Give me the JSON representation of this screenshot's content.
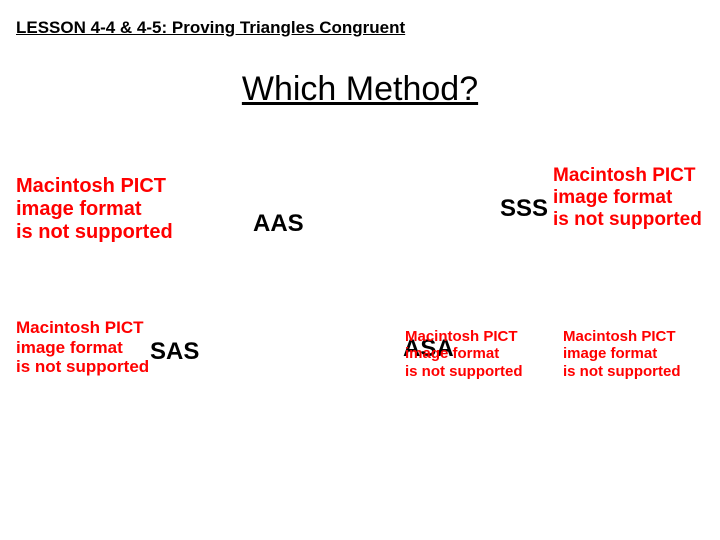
{
  "header": {
    "lesson_title": "LESSON 4-4 & 4-5: Proving Triangles Congruent"
  },
  "title": "Which Method?",
  "answers": {
    "aas": "AAS",
    "sss": "SSS",
    "sas": "SAS",
    "asa": "ASA"
  },
  "pict_error": {
    "line1": "Macintosh PICT",
    "line2": "image format",
    "line3": "is not supported"
  },
  "colors": {
    "background": "#ffffff",
    "text": "#000000",
    "error": "#ff0000"
  },
  "typography": {
    "header_fontsize": 17,
    "title_fontsize": 34,
    "answer_fontsize": 24,
    "pict_fontsize_large": 20,
    "pict_fontsize_medium": 17,
    "pict_fontsize_small": 15
  }
}
